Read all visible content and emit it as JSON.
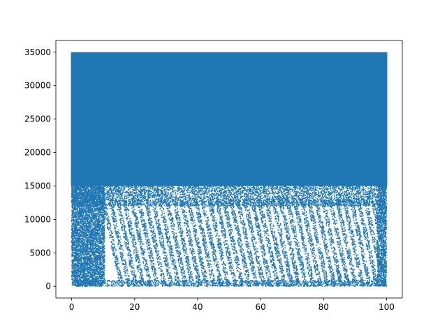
{
  "chart_data": {
    "type": "scatter",
    "title": "",
    "xlabel": "",
    "ylabel": "",
    "xlim": [
      -5,
      105
    ],
    "ylim": [
      -1750,
      36750
    ],
    "x_ticks": [
      0,
      20,
      40,
      60,
      80,
      100
    ],
    "y_ticks": [
      0,
      5000,
      10000,
      15000,
      20000,
      25000,
      30000,
      35000
    ],
    "x_tick_labels": [
      "0",
      "20",
      "40",
      "60",
      "80",
      "100"
    ],
    "y_tick_labels": [
      "0",
      "5000",
      "10000",
      "15000",
      "20000",
      "25000",
      "30000",
      "35000"
    ],
    "grid": false,
    "legend": "none",
    "series": [
      {
        "color": "#1f77b4",
        "marker_size": 1.5,
        "x_range": [
          0,
          100
        ],
        "y_range": [
          0,
          35000
        ],
        "dense_region": {
          "y_above": 15000,
          "x_range": [
            0,
            100
          ]
        },
        "stripe_region": {
          "y_below": 13000,
          "x_start": 10,
          "stripe_count": 40
        }
      }
    ]
  }
}
